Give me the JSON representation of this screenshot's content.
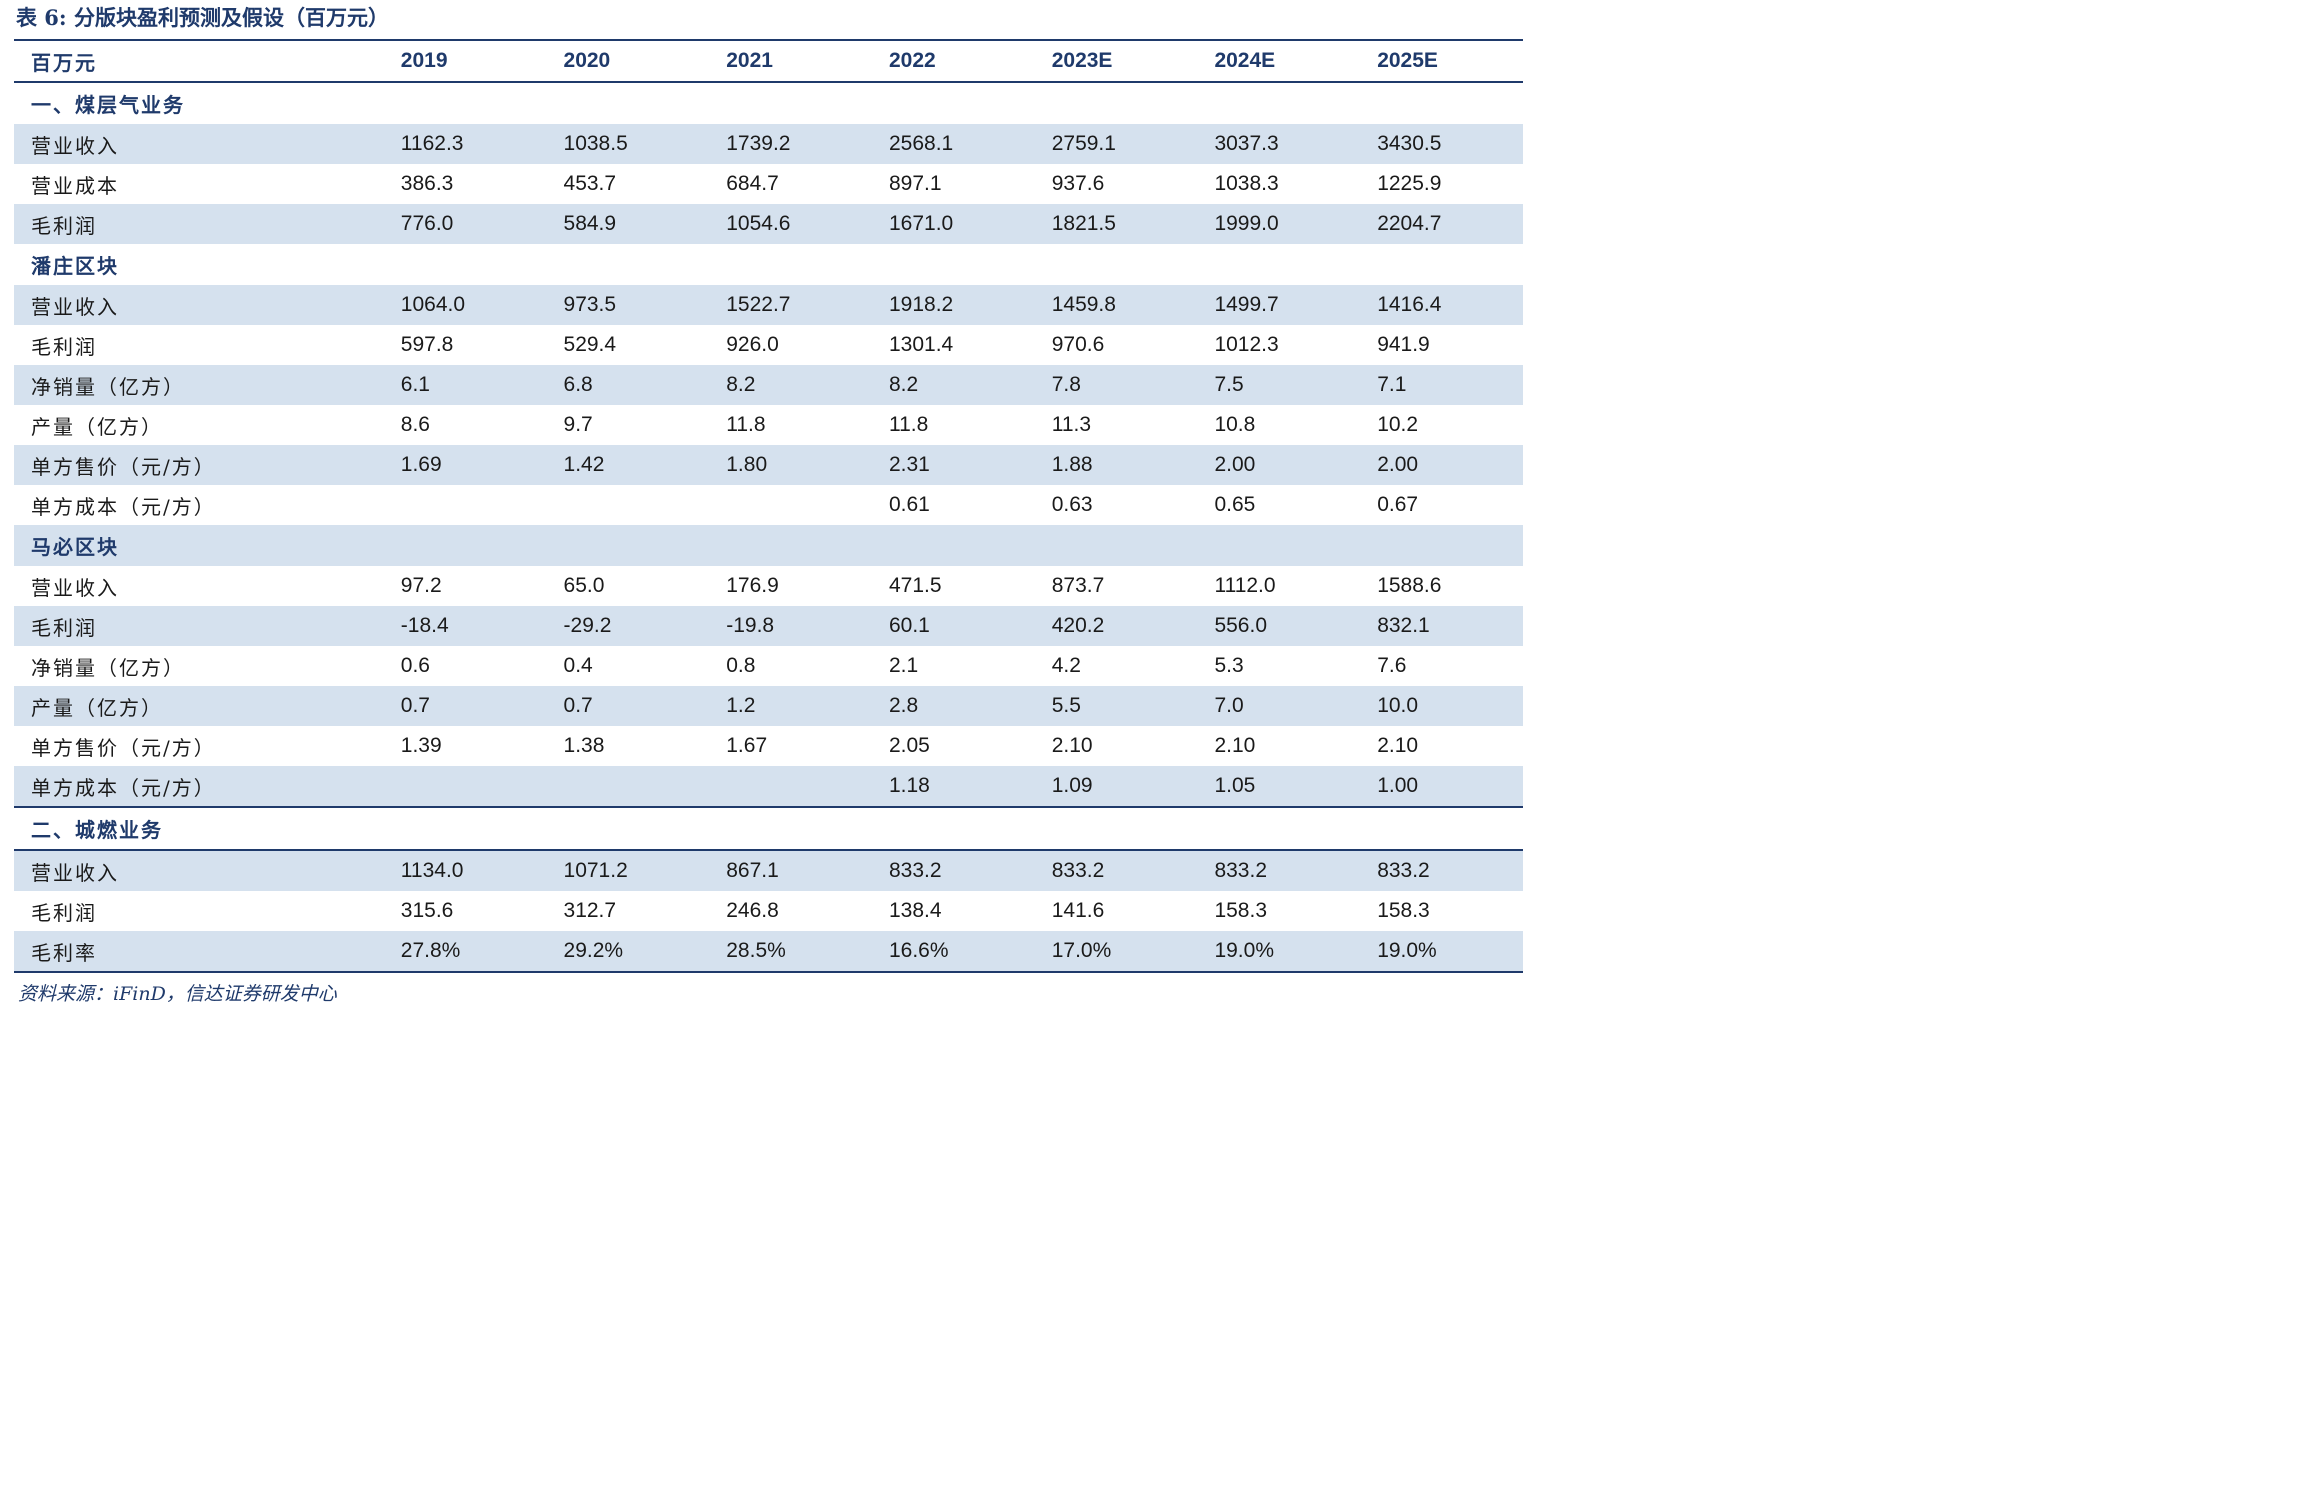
{
  "caption": "表 6:  分版块盈利预测及假设（百万元）",
  "header": [
    "百万元",
    "2019",
    "2020",
    "2021",
    "2022",
    "2023E",
    "2024E",
    "2025E"
  ],
  "rows": [
    {
      "kind": "section",
      "label": "一、煤层气业务",
      "values": [
        "",
        "",
        "",
        "",
        "",
        "",
        ""
      ]
    },
    {
      "kind": "data",
      "label": "营业收入",
      "values": [
        "1162.3",
        "1038.5",
        "1739.2",
        "2568.1",
        "2759.1",
        "3037.3",
        "3430.5"
      ]
    },
    {
      "kind": "data",
      "label": "营业成本",
      "values": [
        "386.3",
        "453.7",
        "684.7",
        "897.1",
        "937.6",
        "1038.3",
        "1225.9"
      ]
    },
    {
      "kind": "data",
      "label": "毛利润",
      "values": [
        "776.0",
        "584.9",
        "1054.6",
        "1671.0",
        "1821.5",
        "1999.0",
        "2204.7"
      ]
    },
    {
      "kind": "section",
      "label": "潘庄区块",
      "values": [
        "",
        "",
        "",
        "",
        "",
        "",
        ""
      ]
    },
    {
      "kind": "data",
      "label": "营业收入",
      "values": [
        "1064.0",
        "973.5",
        "1522.7",
        "1918.2",
        "1459.8",
        "1499.7",
        "1416.4"
      ]
    },
    {
      "kind": "data",
      "label": "毛利润",
      "values": [
        "597.8",
        "529.4",
        "926.0",
        "1301.4",
        "970.6",
        "1012.3",
        "941.9"
      ]
    },
    {
      "kind": "data",
      "label": "净销量（亿方）",
      "values": [
        "6.1",
        "6.8",
        "8.2",
        "8.2",
        "7.8",
        "7.5",
        "7.1"
      ]
    },
    {
      "kind": "data",
      "label": "产量（亿方）",
      "values": [
        "8.6",
        "9.7",
        "11.8",
        "11.8",
        "11.3",
        "10.8",
        "10.2"
      ]
    },
    {
      "kind": "data",
      "label": "单方售价（元/方）",
      "values": [
        "1.69",
        "1.42",
        "1.80",
        "2.31",
        "1.88",
        "2.00",
        "2.00"
      ]
    },
    {
      "kind": "data",
      "label": "单方成本（元/方）",
      "values": [
        "",
        "",
        "",
        "0.61",
        "0.63",
        "0.65",
        "0.67"
      ]
    },
    {
      "kind": "section",
      "label": "马必区块",
      "values": [
        "",
        "",
        "",
        "",
        "",
        "",
        ""
      ]
    },
    {
      "kind": "data",
      "label": "营业收入",
      "values": [
        "97.2",
        "65.0",
        "176.9",
        "471.5",
        "873.7",
        "1112.0",
        "1588.6"
      ]
    },
    {
      "kind": "data",
      "label": "毛利润",
      "values": [
        "-18.4",
        "-29.2",
        "-19.8",
        "60.1",
        "420.2",
        "556.0",
        "832.1"
      ]
    },
    {
      "kind": "data",
      "label": "净销量（亿方）",
      "values": [
        "0.6",
        "0.4",
        "0.8",
        "2.1",
        "4.2",
        "5.3",
        "7.6"
      ]
    },
    {
      "kind": "data",
      "label": "产量（亿方）",
      "values": [
        "0.7",
        "0.7",
        "1.2",
        "2.8",
        "5.5",
        "7.0",
        "10.0"
      ]
    },
    {
      "kind": "data",
      "label": "单方售价（元/方）",
      "values": [
        "1.39",
        "1.38",
        "1.67",
        "2.05",
        "2.10",
        "2.10",
        "2.10"
      ]
    },
    {
      "kind": "data",
      "label": "单方成本（元/方）",
      "values": [
        "",
        "",
        "",
        "1.18",
        "1.09",
        "1.05",
        "1.00"
      ]
    },
    {
      "kind": "section",
      "label": "二、城燃业务",
      "values": [
        "",
        "",
        "",
        "",
        "",
        "",
        ""
      ]
    },
    {
      "kind": "data",
      "label": "营业收入",
      "values": [
        "1134.0",
        "1071.2",
        "867.1",
        "833.2",
        "833.2",
        "833.2",
        "833.2"
      ]
    },
    {
      "kind": "data",
      "label": "毛利润",
      "values": [
        "315.6",
        "312.7",
        "246.8",
        "138.4",
        "141.6",
        "158.3",
        "158.3"
      ]
    },
    {
      "kind": "data",
      "label": "毛利率",
      "values": [
        "27.8%",
        "29.2%",
        "28.5%",
        "16.6%",
        "17.0%",
        "19.0%",
        "19.0%"
      ]
    }
  ],
  "source": "资料来源：iFinD，信达证券研发中心",
  "colors": {
    "accent": "#1f3a6b",
    "row_shade": "#d5e1ee"
  }
}
